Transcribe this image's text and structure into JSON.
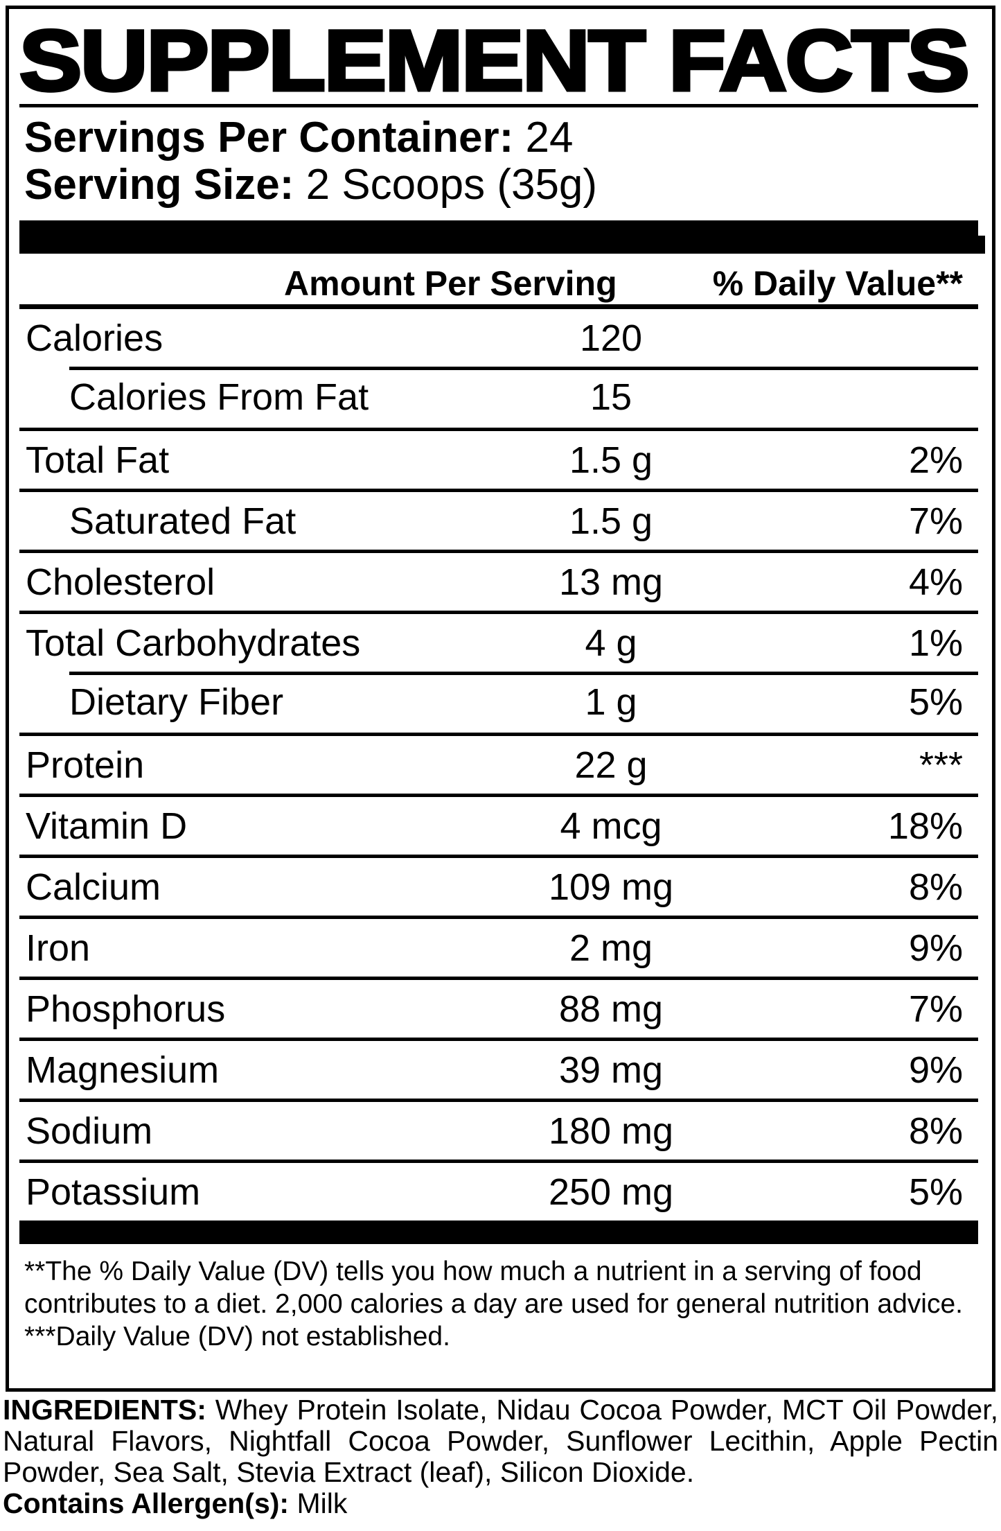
{
  "label": {
    "title": "SUPPLEMENT FACTS",
    "servings_per_container": {
      "label": "Servings Per Container:",
      "value": "24"
    },
    "serving_size": {
      "label": "Serving Size:",
      "value": "2 Scoops (35g)"
    },
    "columns": {
      "amount": "Amount Per Serving",
      "daily_value": "% Daily Value**"
    },
    "rows": [
      {
        "label": "Calories",
        "amount": "120"
      },
      {
        "label": "Calories From Fat",
        "amount": "15"
      },
      {
        "label": "Total Fat",
        "amount": "1.5 g",
        "dv": "2%"
      },
      {
        "label": "Saturated Fat",
        "amount": "1.5 g",
        "dv": "7%"
      },
      {
        "label": "Cholesterol",
        "amount": "13 mg",
        "dv": "4%"
      },
      {
        "label": "Total Carbohydrates",
        "amount": "4 g",
        "dv": "1%"
      },
      {
        "label": "Dietary Fiber",
        "amount": "1 g",
        "dv": "5%"
      },
      {
        "label": "Protein",
        "amount": "22 g",
        "dv": "***"
      },
      {
        "label": "Vitamin D",
        "amount": "4 mcg",
        "dv": "18%"
      },
      {
        "label": "Calcium",
        "amount": "109 mg",
        "dv": "8%"
      },
      {
        "label": "Iron",
        "amount": "2 mg",
        "dv": "9%"
      },
      {
        "label": "Phosphorus",
        "amount": "88 mg",
        "dv": "7%"
      },
      {
        "label": "Magnesium",
        "amount": "39 mg",
        "dv": "9%"
      },
      {
        "label": "Sodium",
        "amount": "180 mg",
        "dv": "8%"
      },
      {
        "label": "Potassium",
        "amount": "250 mg",
        "dv": "5%"
      }
    ],
    "footnotes": {
      "daily_value": "**The % Daily Value (DV) tells you how much a nutrient in a serving of food contributes to a diet. 2,000 calories a day are used for general nutrition advice.",
      "not_established": "***Daily Value (DV) not established."
    }
  },
  "ingredients": {
    "label": "INGREDIENTS:",
    "text": " Whey Protein Isolate, Nidau Cocoa Powder, MCT Oil Powder, Natural Flavors, Nightfall Cocoa Powder, Sunflower Lecithin, Apple Pectin Powder, Sea Salt, Stevia Extract (leaf), Silicon Dioxide."
  },
  "allergen": {
    "label": "Contains Allergen(s):",
    "value": " Milk"
  },
  "colors": {
    "ink": "#000000",
    "paper": "#ffffff"
  }
}
